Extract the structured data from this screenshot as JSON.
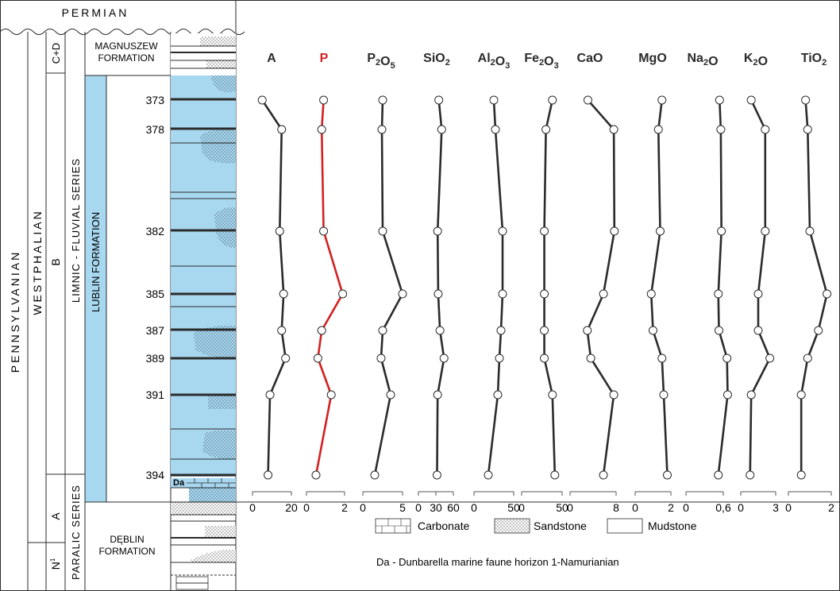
{
  "figure": {
    "period_top": "PERMIAN",
    "system": "PENNSYLVANIAN",
    "stage": "WESTPHALIAN",
    "substage_cd": "C+D",
    "substage_b": "B",
    "substage_a": "A",
    "namurian_symbol": "N",
    "namurian_superscript": "1",
    "series_upper": "LIMNIC - FLUVIAL SERIES",
    "series_lower": "PARALIC SERIES",
    "formation_upper_1": "MAGNUSZEW",
    "formation_upper_2": "FORMATION",
    "formation_lublin": "LUBLIN FORMATION",
    "formation_deblin_1": "DĘBLIN",
    "formation_deblin_2": "FORMATION",
    "marker_da": "Da",
    "legend": {
      "carbonate": "Carbonate",
      "sandstone": "Sandstone",
      "mudstone": "Mudstone",
      "note": "Da - Dunbarella marine faune horizon  1-Namurianian"
    },
    "colors": {
      "lublin_fill": "#a8d8f0",
      "line_default": "#2b2b2b",
      "line_highlight": "#d42020",
      "marker_fill": "#ffffff"
    }
  },
  "chart_data": {
    "type": "line",
    "orientation": "vertical-profiles",
    "samples": [
      "373",
      "378",
      "382",
      "385",
      "387",
      "389",
      "391",
      "394"
    ],
    "series": [
      {
        "name": "A",
        "color": "#2b2b2b",
        "xlim": [
          0,
          20
        ],
        "ticks": [
          "0",
          "20"
        ],
        "values": [
          5,
          15,
          14,
          16,
          15,
          17,
          9,
          8
        ]
      },
      {
        "name": "P",
        "color": "#d42020",
        "xlim": [
          0,
          2
        ],
        "ticks": [
          "0",
          "2"
        ],
        "values": [
          0.9,
          0.8,
          0.9,
          1.9,
          0.8,
          0.6,
          1.3,
          0.5
        ]
      },
      {
        "name": "P2O5",
        "label_parts": [
          [
            "P",
            ""
          ],
          [
            "2",
            "sub"
          ],
          [
            "O",
            ""
          ],
          [
            "5",
            "sub"
          ]
        ],
        "color": "#2b2b2b",
        "xlim": [
          0,
          5
        ],
        "ticks": [
          "0",
          "5"
        ],
        "values": [
          2.5,
          2.4,
          2.5,
          5.0,
          2.5,
          2.3,
          3.5,
          1.5
        ]
      },
      {
        "name": "SiO2",
        "label_parts": [
          [
            "SiO",
            ""
          ],
          [
            "2",
            "sub"
          ]
        ],
        "color": "#2b2b2b",
        "xlim": [
          0,
          60
        ],
        "ticks": [
          "0",
          "30",
          "60"
        ],
        "values": [
          35,
          40,
          33,
          34,
          37,
          44,
          33,
          32
        ]
      },
      {
        "name": "Al2O3",
        "label_parts": [
          [
            "Al",
            ""
          ],
          [
            "2",
            "sub"
          ],
          [
            "O",
            ""
          ],
          [
            "3",
            "sub"
          ]
        ],
        "color": "#2b2b2b",
        "xlim": [
          0,
          50
        ],
        "ticks": [
          "0",
          "50"
        ],
        "values": [
          25,
          27,
          36,
          36,
          34,
          32,
          30,
          18
        ]
      },
      {
        "name": "Fe2O3",
        "label_parts": [
          [
            "Fe",
            ""
          ],
          [
            "2",
            "sub"
          ],
          [
            "O",
            ""
          ],
          [
            "3",
            "sub"
          ]
        ],
        "color": "#2b2b2b",
        "xlim": [
          0,
          50
        ],
        "ticks": [
          "0",
          "50"
        ],
        "values": [
          38,
          30,
          28,
          28,
          28,
          28,
          38,
          41
        ]
      },
      {
        "name": "CaO",
        "color": "#2b2b2b",
        "xlim": [
          0,
          8
        ],
        "ticks": [
          "0",
          "8"
        ],
        "values": [
          3.1,
          7.6,
          7.7,
          5.8,
          3.0,
          3.6,
          7.6,
          5.8
        ]
      },
      {
        "name": "MgO",
        "color": "#2b2b2b",
        "xlim": [
          0,
          2
        ],
        "ticks": [
          "0",
          "2"
        ],
        "values": [
          1.5,
          1.3,
          1.4,
          0.9,
          1.0,
          1.5,
          1.6,
          1.8
        ]
      },
      {
        "name": "Na2O",
        "label_parts": [
          [
            "Na",
            ""
          ],
          [
            "2",
            "sub"
          ],
          [
            "O",
            ""
          ]
        ],
        "color": "#2b2b2b",
        "xlim": [
          0,
          0.6
        ],
        "ticks": [
          "0",
          "0,6"
        ],
        "values": [
          0.54,
          0.56,
          0.57,
          0.52,
          0.53,
          0.66,
          0.67,
          0.52
        ]
      },
      {
        "name": "K2O",
        "label_parts": [
          [
            "K",
            ""
          ],
          [
            "2",
            "sub"
          ],
          [
            "O",
            ""
          ]
        ],
        "color": "#2b2b2b",
        "xlim": [
          0,
          3
        ],
        "ticks": [
          "0",
          "3"
        ],
        "values": [
          0.9,
          2.1,
          2.1,
          1.5,
          1.5,
          2.5,
          0.9,
          0.8
        ]
      },
      {
        "name": "TiO2",
        "label_parts": [
          [
            "TiO",
            ""
          ],
          [
            "2",
            "sub"
          ]
        ],
        "color": "#2b2b2b",
        "xlim": [
          0,
          2
        ],
        "ticks": [
          "0",
          "2"
        ],
        "values": [
          0.8,
          0.9,
          1.0,
          1.8,
          1.4,
          0.9,
          0.6,
          0.6
        ]
      }
    ]
  }
}
